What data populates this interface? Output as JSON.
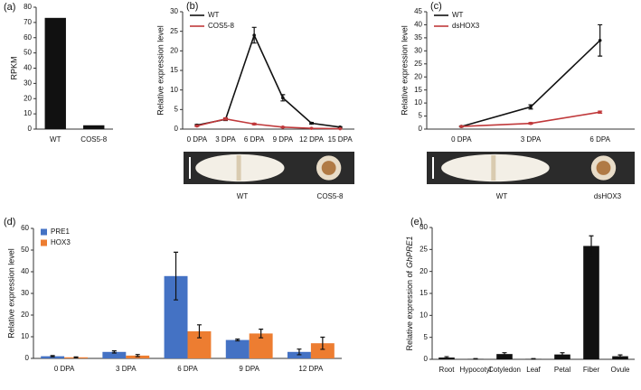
{
  "chart_data": [
    {
      "type": "bar",
      "panel": "(a)",
      "ylabel": "RPKM",
      "categories": [
        "WT",
        "COS5-8"
      ],
      "values": [
        73,
        2.5
      ],
      "color": "#111111",
      "ylim": [
        0,
        80
      ],
      "yticks": [
        0,
        10,
        20,
        30,
        40,
        50,
        60,
        70,
        80
      ]
    },
    {
      "type": "line",
      "panel": "(b)",
      "ylabel": "Relative expression level",
      "categories": [
        "0 DPA",
        "3 DPA",
        "6 DPA",
        "9 DPA",
        "12 DPA",
        "15 DPA"
      ],
      "series": [
        {
          "name": "WT",
          "color": "#111111",
          "values": [
            1,
            2.5,
            24,
            8,
            1.5,
            0.5
          ],
          "errors": [
            0.2,
            0.3,
            2,
            0.8,
            0.2,
            0.1
          ]
        },
        {
          "name": "COS5-8",
          "color": "#c0393b",
          "values": [
            0.8,
            2.6,
            1.3,
            0.5,
            0.2,
            0.1
          ],
          "errors": [
            0.1,
            0.3,
            0.2,
            0.1,
            0.05,
            0.05
          ]
        }
      ],
      "ylim": [
        0,
        30
      ],
      "yticks": [
        0,
        5,
        10,
        15,
        20,
        25,
        30
      ],
      "image_labels": [
        "WT",
        "COS5-8"
      ]
    },
    {
      "type": "line",
      "panel": "(c)",
      "ylabel": "Relative expression level",
      "categories": [
        "0 DPA",
        "3 DPA",
        "6 DPA"
      ],
      "series": [
        {
          "name": "WT",
          "color": "#111111",
          "values": [
            1,
            8.5,
            34
          ],
          "errors": [
            0.2,
            0.8,
            6
          ]
        },
        {
          "name": "dsHOX3",
          "color": "#c0393b",
          "values": [
            1,
            2.2,
            6.5
          ],
          "errors": [
            0.1,
            0.3,
            0.4
          ]
        }
      ],
      "ylim": [
        0,
        45
      ],
      "yticks": [
        0,
        5,
        10,
        15,
        20,
        25,
        30,
        35,
        40,
        45
      ],
      "image_labels": [
        "WT",
        "dsHOX3"
      ]
    },
    {
      "type": "bar",
      "panel": "(d)",
      "ylabel": "Relative expression level",
      "categories": [
        "0 DPA",
        "3 DPA",
        "6 DPA",
        "9 DPA",
        "12 DPA"
      ],
      "series": [
        {
          "name": "PRE1",
          "color": "#4472c4",
          "values": [
            1,
            3,
            38,
            8.5,
            3
          ],
          "errors": [
            0.3,
            0.5,
            11,
            0.4,
            1.3
          ]
        },
        {
          "name": "HOX3",
          "color": "#ed7d31",
          "values": [
            0.5,
            1.3,
            12.5,
            11.5,
            7
          ],
          "errors": [
            0.2,
            0.5,
            3,
            2,
            2.8
          ]
        }
      ],
      "ylim": [
        0,
        60
      ],
      "yticks": [
        0,
        10,
        20,
        30,
        40,
        50,
        60
      ]
    },
    {
      "type": "bar",
      "panel": "(e)",
      "ylabel": "Relative expression of",
      "ylabel_gene": "GhPRE1",
      "categories": [
        "Root",
        "Hypocotyl",
        "Cotyledon",
        "Leaf",
        "Petal",
        "Fiber",
        "Ovule"
      ],
      "values": [
        0.4,
        0.1,
        1.2,
        0.1,
        1.1,
        25.8,
        0.7
      ],
      "errors": [
        0.2,
        0.05,
        0.3,
        0.05,
        0.4,
        2.3,
        0.3
      ],
      "color": "#111111",
      "ylim": [
        0,
        30
      ],
      "yticks": [
        0,
        5,
        10,
        15,
        20,
        25,
        30
      ]
    }
  ]
}
